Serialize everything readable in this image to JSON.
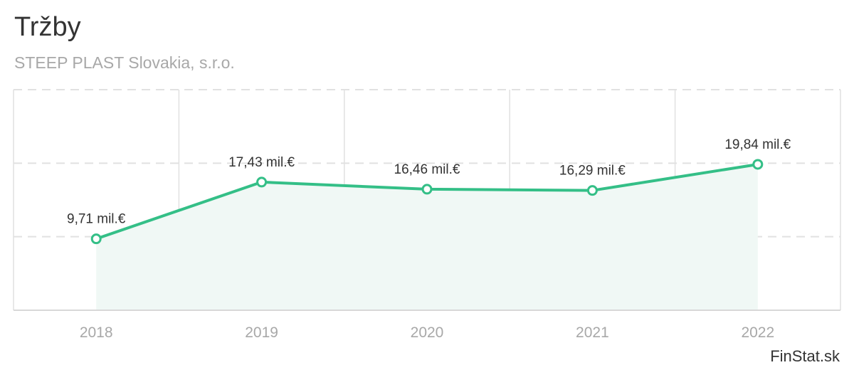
{
  "header": {
    "title": "Tržby",
    "subtitle": "STEEP PLAST Slovakia, s.r.o."
  },
  "credit": "FinStat.sk",
  "colors": {
    "line": "#34bf87",
    "area": "#f0f8f5",
    "grid": "#e1e1e1",
    "axis_label": "#a8a8a8",
    "data_label": "#333333"
  },
  "chart_data": {
    "type": "area",
    "categories": [
      "2018",
      "2019",
      "2020",
      "2021",
      "2022"
    ],
    "values": [
      9.71,
      17.43,
      16.46,
      16.29,
      19.84
    ],
    "data_labels": [
      "9,71 mil.€",
      "17,43 mil.€",
      "16,46 mil.€",
      "16,29 mil.€",
      "19,84 mil.€"
    ],
    "ylim": [
      0,
      30
    ],
    "grid": true,
    "legend": "none"
  }
}
